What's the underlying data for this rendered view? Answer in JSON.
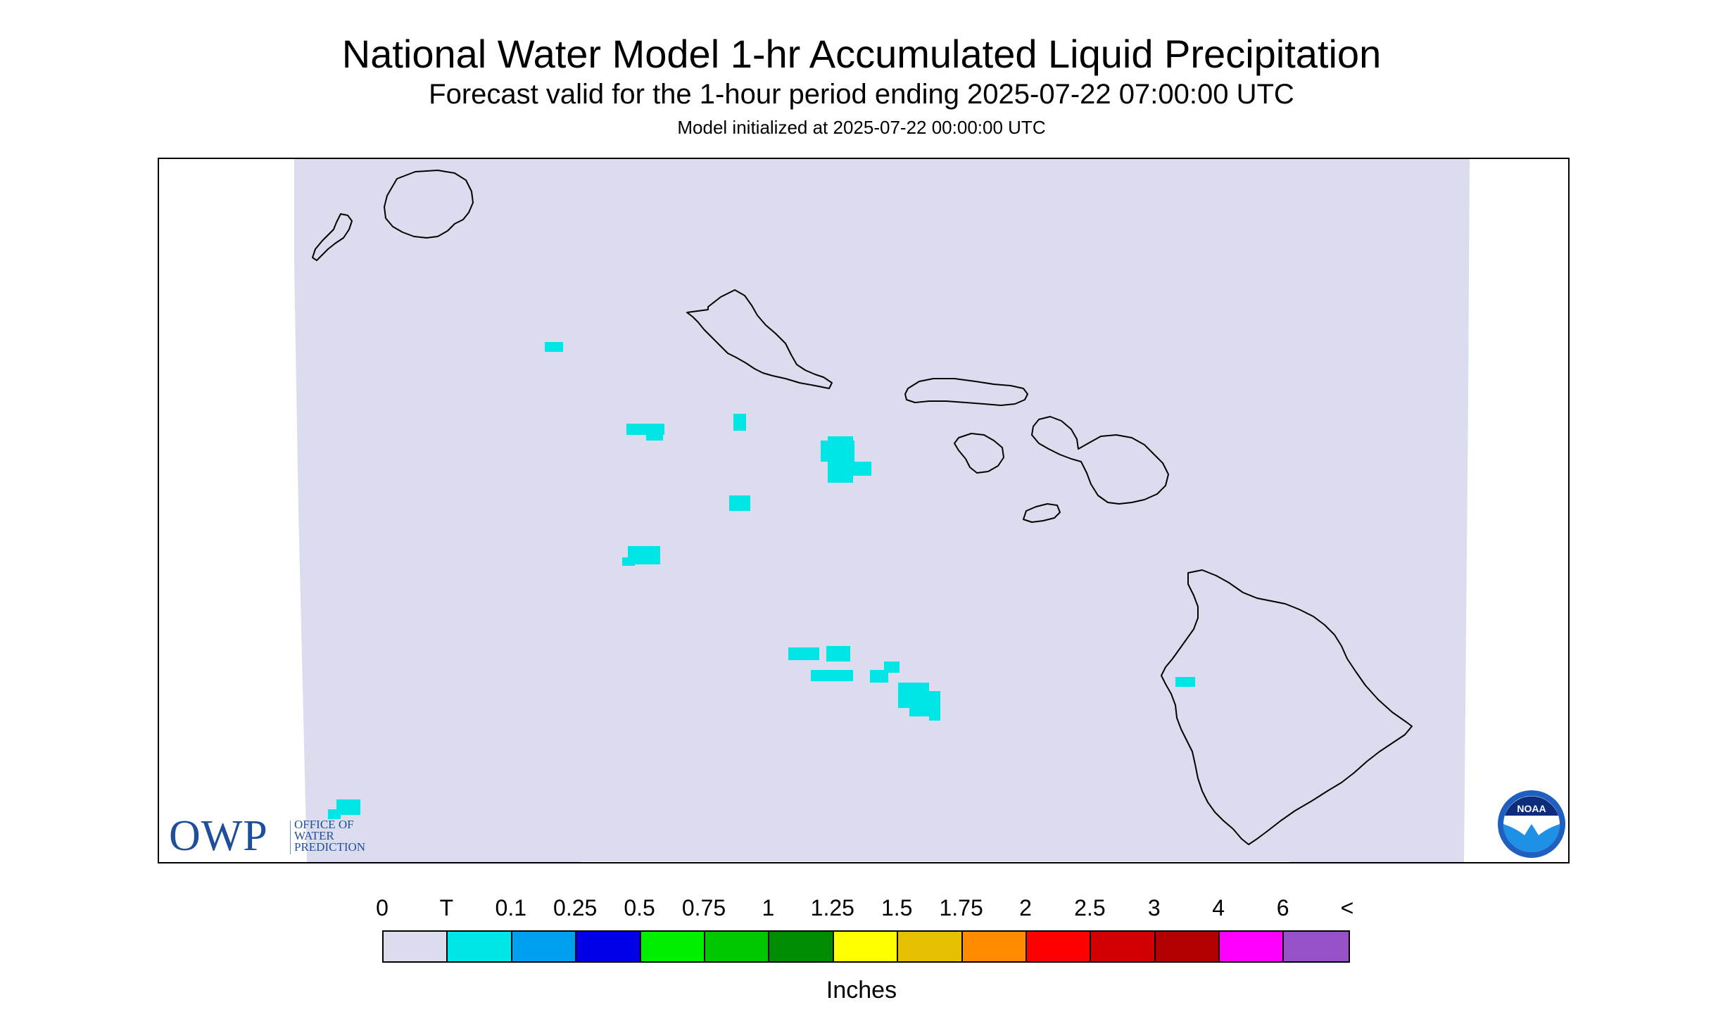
{
  "header": {
    "title": "National Water Model 1-hr Accumulated Liquid Precipitation",
    "subtitle": "Forecast valid for the 1-hour period ending 2025-07-22 07:00:00 UTC",
    "init_line": "Model initialized at 2025-07-22 00:00:00 UTC"
  },
  "map": {
    "region": "Hawaii",
    "domain_color": "#dcdcef",
    "coastline_color": "#000000",
    "islands": [
      "Niihau",
      "Kauai",
      "Oahu",
      "Molokai",
      "Lanai",
      "Maui",
      "Kahoolawe",
      "Hawaii"
    ],
    "precip_class_shown": "T",
    "precip_color": "#00e6e6"
  },
  "logos": {
    "owp": {
      "mark": "OWP",
      "lines": [
        "Office of",
        "Water",
        "Prediction"
      ],
      "color": "#1f4e9c"
    },
    "noaa": {
      "text": "NOAA",
      "icon": "noaa-seagull-icon"
    }
  },
  "legend": {
    "labels": [
      "0",
      "T",
      "0.1",
      "0.25",
      "0.5",
      "0.75",
      "1",
      "1.25",
      "1.5",
      "1.75",
      "2",
      "2.5",
      "3",
      "4",
      "6",
      "<"
    ],
    "colors": [
      "#dcdcef",
      "#00e6e6",
      "#00a0f0",
      "#0000e6",
      "#00f000",
      "#00c800",
      "#008c00",
      "#ffff00",
      "#e6bf00",
      "#ff8c00",
      "#ff0000",
      "#d20000",
      "#b40000",
      "#ff00ff",
      "#9650c8"
    ],
    "units": "Inches"
  }
}
